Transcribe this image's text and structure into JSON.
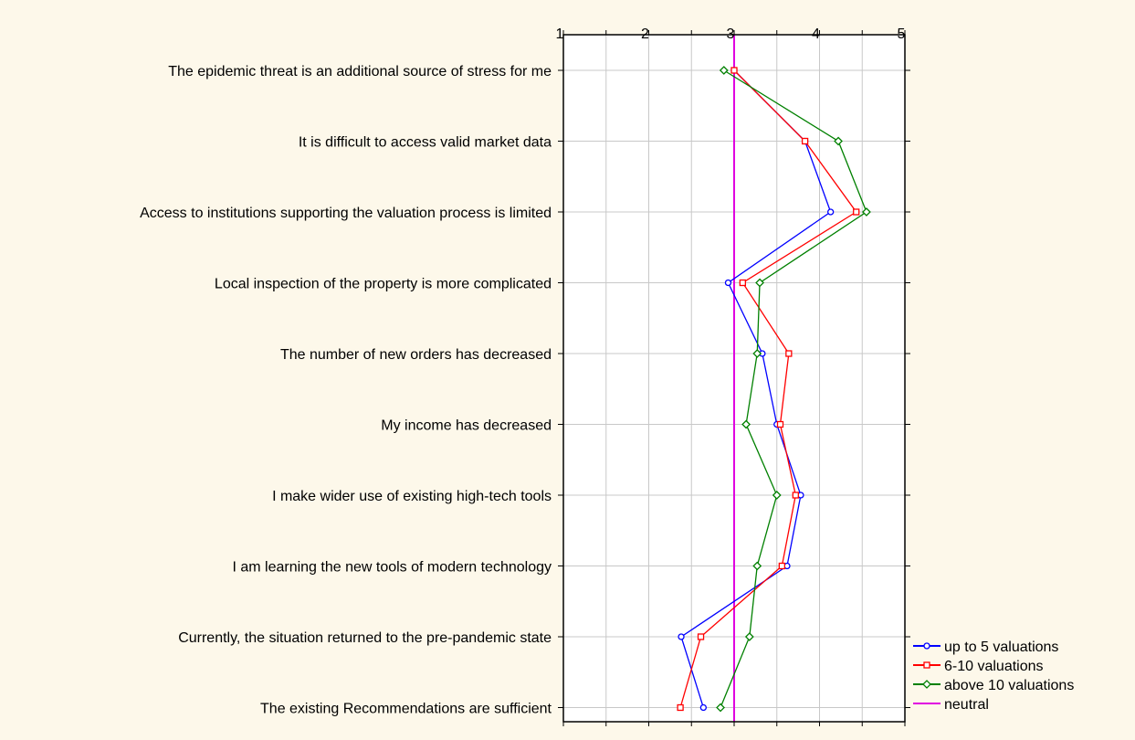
{
  "chart_data": {
    "type": "line",
    "orientation": "horizontal",
    "x_ticks": [
      "1",
      "2",
      "3",
      "4",
      "5"
    ],
    "xlim": [
      1,
      5
    ],
    "grid": true,
    "legend_position": "bottom-right",
    "categories": [
      "The epidemic threat is an additional source of stress for me",
      "It is difficult to access valid market data",
      "Access to institutions supporting the valuation process is limited",
      "Local inspection of the property is more complicated",
      "The number of new orders has decreased",
      "My income has decreased",
      "I make wider use of existing high-tech tools",
      "I am learning the new tools of modern technology",
      "Currently, the situation returned to the pre-pandemic state",
      "The existing Recommendations are sufficient"
    ],
    "series": [
      {
        "name": "up to 5 valuations",
        "color": "#0000ff",
        "marker": "circle",
        "values": [
          3.0,
          3.83,
          4.13,
          2.93,
          3.33,
          3.5,
          3.78,
          3.62,
          2.38,
          2.64
        ]
      },
      {
        "name": "6-10 valuations",
        "color": "#ff0000",
        "marker": "square",
        "values": [
          3.0,
          3.83,
          4.43,
          3.1,
          3.64,
          3.54,
          3.72,
          3.56,
          2.61,
          2.37
        ]
      },
      {
        "name": "above 10 valuations",
        "color": "#008000",
        "marker": "diamond",
        "values": [
          2.88,
          4.22,
          4.55,
          3.3,
          3.27,
          3.14,
          3.5,
          3.27,
          3.18,
          2.84
        ]
      }
    ],
    "reference_line": {
      "name": "neutral",
      "value": 3,
      "color": "#e000e0"
    }
  }
}
